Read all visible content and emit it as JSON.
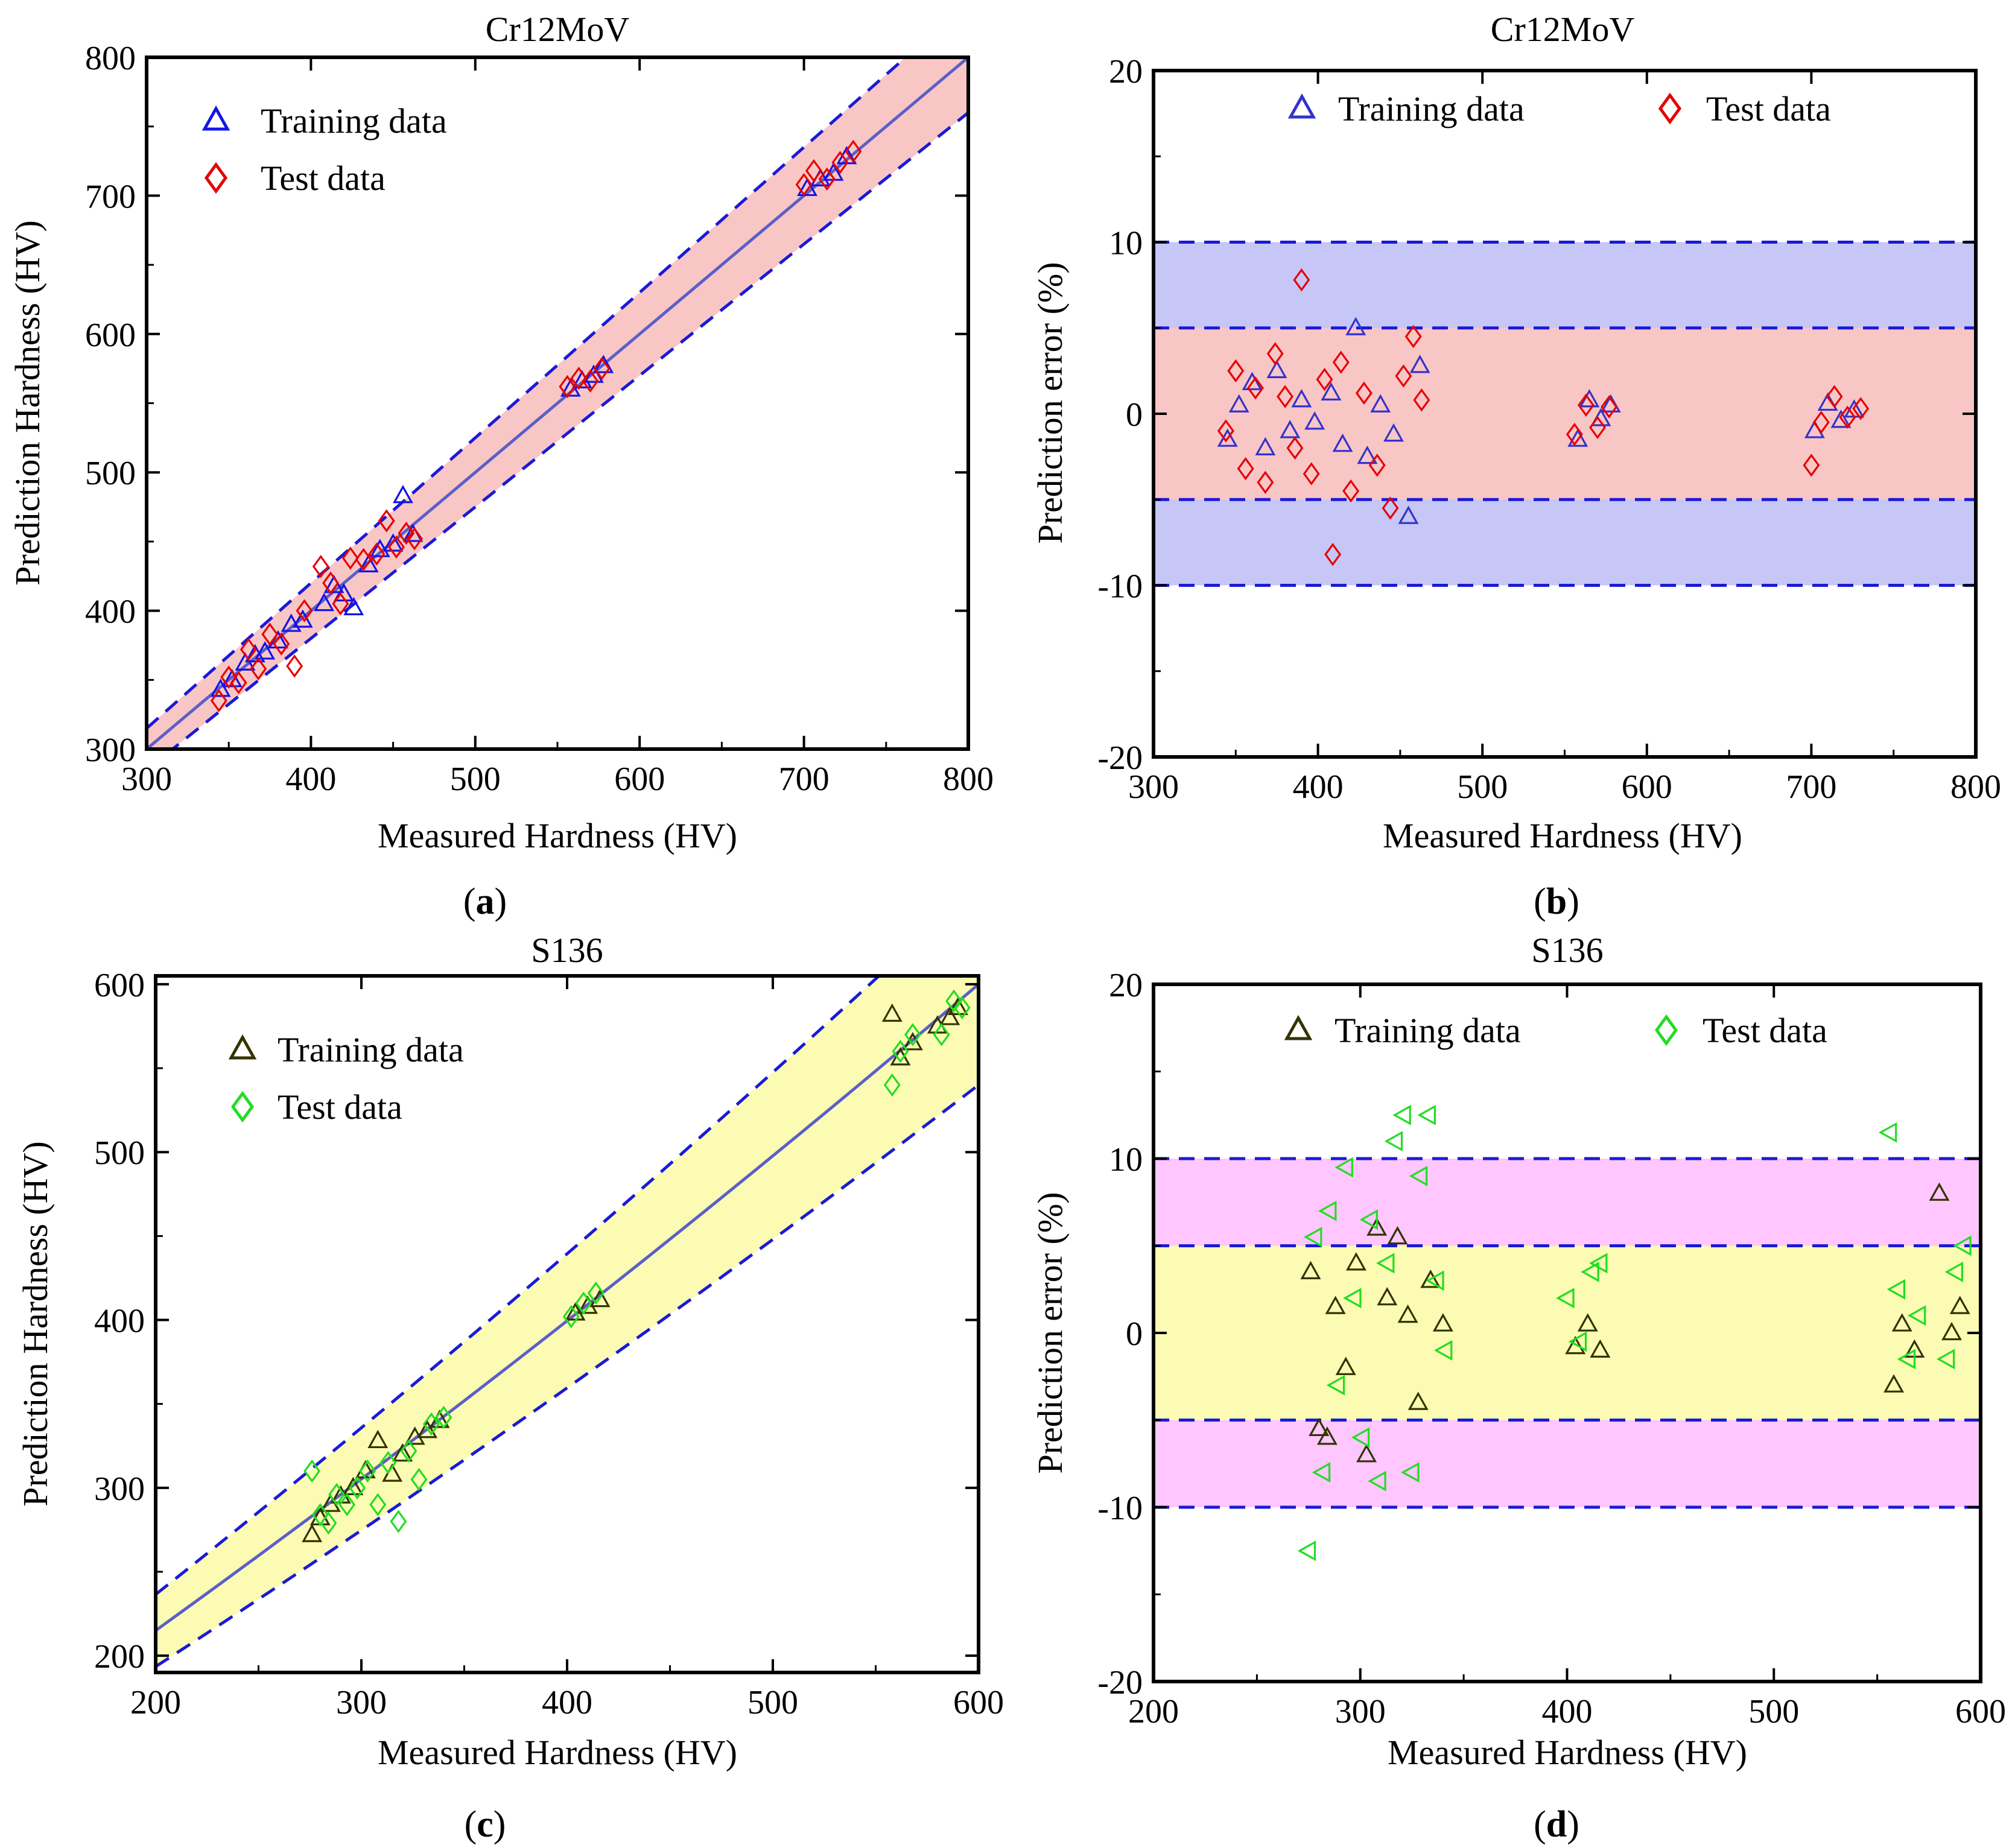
{
  "figure": {
    "panels": [
      {
        "id": "a",
        "caption_label": "a",
        "title": "Cr12MoV",
        "type": "parity",
        "xlabel": "Measured Hardness (HV)",
        "ylabel": "Prediction Hardness (HV)",
        "xlim": [
          300,
          800
        ],
        "ylim": [
          300,
          800
        ],
        "xticks": [
          300,
          400,
          500,
          600,
          700,
          800
        ],
        "yticks": [
          300,
          400,
          500,
          600,
          700,
          800
        ],
        "band_fraction": 0.05,
        "colors": {
          "band": "#f9c6c6",
          "fit_line": "#5b5fc7",
          "dashed": "#1a1ad6",
          "train": "#1414e6",
          "test": "#e60000"
        },
        "legend": {
          "train_label": "Training data",
          "test_label": "Test data",
          "position": "top-left"
        }
      },
      {
        "id": "b",
        "caption_label": "b",
        "title": "Cr12MoV",
        "type": "error",
        "xlabel": "Measured Hardness (HV)",
        "ylabel": "Prediction error (%)",
        "xlim": [
          300,
          800
        ],
        "ylim": [
          -20,
          20
        ],
        "xticks": [
          300,
          400,
          500,
          600,
          700,
          800
        ],
        "yticks": [
          -20,
          -10,
          0,
          10,
          20
        ],
        "inner_band": [
          -5,
          5
        ],
        "outer_band": [
          -10,
          10
        ],
        "colors": {
          "inner": "#f9c6c6",
          "outer": "#c6c6f7",
          "dashed": "#1a1ad6",
          "train": "#3333cc",
          "test": "#e60000"
        },
        "legend": {
          "train_label": "Training data",
          "test_label": "Test data",
          "position": "top"
        }
      },
      {
        "id": "c",
        "caption_label": "c",
        "title": "S136",
        "type": "parity",
        "xlabel": "Measured Hardness (HV)",
        "ylabel": "Prediction Hardness (HV)",
        "xlim": [
          200,
          600
        ],
        "ylim": [
          190,
          605
        ],
        "xticks": [
          200,
          300,
          400,
          500,
          600
        ],
        "yticks": [
          200,
          300,
          400,
          500,
          600
        ],
        "band_fraction": 0.1,
        "colors": {
          "band": "#fbfbb4",
          "fit_line": "#5b5fc7",
          "dashed": "#1a1ad6",
          "train": "#333300",
          "test": "#22dd22"
        },
        "legend": {
          "train_label": "Training data",
          "test_label": "Test data",
          "position": "top-left"
        }
      },
      {
        "id": "d",
        "caption_label": "d",
        "title": "S136",
        "type": "error",
        "xlabel": "Measured Hardness (HV)",
        "ylabel": "Prediction error (%)",
        "xlim": [
          200,
          600
        ],
        "ylim": [
          -20,
          20
        ],
        "xticks": [
          200,
          300,
          400,
          500,
          600
        ],
        "yticks": [
          -20,
          -10,
          0,
          10,
          20
        ],
        "inner_band": [
          -5,
          5
        ],
        "outer_band": [
          -10,
          10
        ],
        "colors": {
          "inner": "#fbfbb4",
          "outer": "#ffc6ff",
          "dashed": "#1a1ad6",
          "train": "#333300",
          "test": "#22dd22"
        },
        "legend": {
          "train_label": "Training data",
          "test_label": "Test data",
          "position": "top"
        }
      }
    ]
  },
  "chart_data": [
    {
      "type": "scatter",
      "title": "Cr12MoV",
      "panel": "a",
      "xlabel": "Measured Hardness (HV)",
      "ylabel": "Prediction Hardness (HV)",
      "xlim": [
        300,
        800
      ],
      "ylim": [
        300,
        800
      ],
      "reference_line": "y = x with ±5% dashed bounds",
      "series": [
        {
          "name": "Training data",
          "marker": "triangle",
          "x": [
            345,
            352,
            360,
            366,
            372,
            380,
            388,
            395,
            408,
            414,
            420,
            426,
            435,
            442,
            450,
            456,
            462,
            558,
            565,
            572,
            578,
            702,
            710,
            718,
            726
          ],
          "y": [
            343,
            350,
            362,
            368,
            370,
            378,
            390,
            393,
            405,
            418,
            412,
            402,
            433,
            444,
            448,
            483,
            455,
            560,
            566,
            570,
            577,
            705,
            712,
            716,
            728
          ]
        },
        {
          "name": "Test data",
          "marker": "diamond",
          "x": [
            344,
            350,
            356,
            362,
            368,
            375,
            382,
            390,
            396,
            406,
            412,
            418,
            424,
            432,
            440,
            446,
            452,
            458,
            463,
            556,
            563,
            570,
            577,
            700,
            706,
            714,
            722,
            730
          ],
          "y": [
            335,
            352,
            348,
            372,
            358,
            383,
            376,
            360,
            400,
            432,
            420,
            405,
            438,
            437,
            441,
            465,
            446,
            456,
            452,
            562,
            568,
            566,
            575,
            708,
            718,
            712,
            724,
            732
          ]
        }
      ]
    },
    {
      "type": "scatter",
      "title": "Cr12MoV",
      "panel": "b",
      "xlabel": "Measured Hardness (HV)",
      "ylabel": "Prediction error (%)",
      "xlim": [
        300,
        800
      ],
      "ylim": [
        -20,
        20
      ],
      "bands": {
        "inner": [
          -5,
          5
        ],
        "outer": [
          -10,
          10
        ]
      },
      "series": [
        {
          "name": "Training data",
          "marker": "triangle",
          "x": [
            345,
            352,
            360,
            368,
            375,
            383,
            390,
            398,
            408,
            415,
            423,
            430,
            438,
            446,
            455,
            462,
            558,
            565,
            572,
            578,
            702,
            710,
            718,
            726
          ],
          "y": [
            -1.5,
            0.5,
            1.8,
            -2.0,
            2.5,
            -1.0,
            0.8,
            -0.5,
            1.2,
            -1.8,
            5.0,
            -2.5,
            0.5,
            -1.2,
            -6.0,
            2.8,
            -1.5,
            0.8,
            -0.3,
            0.5,
            -1.0,
            0.6,
            -0.4,
            0.2
          ]
        },
        {
          "name": "Test data",
          "marker": "diamond",
          "x": [
            344,
            350,
            356,
            362,
            368,
            374,
            380,
            386,
            390,
            396,
            404,
            409,
            414,
            420,
            428,
            436,
            444,
            452,
            458,
            463,
            556,
            563,
            570,
            577,
            700,
            706,
            714,
            722,
            730
          ],
          "y": [
            -1.0,
            2.5,
            -3.2,
            1.5,
            -4.0,
            3.5,
            1.0,
            -2.0,
            7.8,
            -3.5,
            2.0,
            -8.2,
            3.0,
            -4.5,
            1.2,
            -3.0,
            -5.5,
            2.2,
            4.5,
            0.8,
            -1.2,
            0.5,
            -0.8,
            0.4,
            -3.0,
            -0.5,
            1.0,
            -0.2,
            0.3
          ]
        }
      ]
    },
    {
      "type": "scatter",
      "title": "S136",
      "panel": "c",
      "xlabel": "Measured Hardness (HV)",
      "ylabel": "Prediction Hardness (HV)",
      "xlim": [
        200,
        600
      ],
      "ylim": [
        190,
        605
      ],
      "reference_line": "fitted curve with ±10% dashed bounds",
      "series": [
        {
          "name": "Training data",
          "marker": "triangle",
          "x": [
            276,
            280,
            285,
            290,
            296,
            302,
            308,
            315,
            320,
            326,
            332,
            338,
            404,
            410,
            416,
            558,
            562,
            568,
            580,
            586,
            590
          ],
          "y": [
            272,
            282,
            290,
            295,
            300,
            310,
            328,
            308,
            320,
            330,
            334,
            340,
            404,
            408,
            412,
            582,
            556,
            565,
            575,
            580,
            586
          ]
        },
        {
          "name": "Test data",
          "marker": "diamond",
          "x": [
            276,
            280,
            284,
            288,
            293,
            298,
            303,
            308,
            313,
            318,
            323,
            328,
            334,
            340,
            402,
            408,
            414,
            558,
            562,
            568,
            582,
            588,
            592
          ],
          "y": [
            310,
            284,
            279,
            296,
            290,
            300,
            310,
            290,
            315,
            280,
            322,
            305,
            338,
            342,
            402,
            410,
            416,
            540,
            560,
            570,
            570,
            590,
            586
          ]
        }
      ]
    },
    {
      "type": "scatter",
      "title": "S136",
      "panel": "d",
      "xlabel": "Measured Hardness (HV)",
      "ylabel": "Prediction error (%)",
      "xlim": [
        200,
        600
      ],
      "ylim": [
        -20,
        20
      ],
      "bands": {
        "inner": [
          -5,
          5
        ],
        "outer": [
          -10,
          10
        ]
      },
      "series": [
        {
          "name": "Training data",
          "marker": "triangle",
          "x": [
            276,
            280,
            284,
            288,
            293,
            298,
            303,
            308,
            313,
            318,
            323,
            328,
            334,
            340,
            404,
            410,
            416,
            558,
            562,
            568,
            580,
            586,
            590
          ],
          "y": [
            3.5,
            -5.5,
            -6.0,
            1.5,
            -2.0,
            4.0,
            -7.0,
            6.0,
            2.0,
            5.5,
            1.0,
            -4.0,
            3.0,
            0.5,
            -0.8,
            0.5,
            -1.0,
            -3.0,
            0.5,
            -1.0,
            8.0,
            0.0,
            1.5
          ]
        },
        {
          "name": "Test data",
          "marker": "triangle-left",
          "x": [
            275,
            278,
            282,
            285,
            289,
            293,
            297,
            301,
            305,
            309,
            313,
            317,
            321,
            325,
            329,
            333,
            337,
            341,
            400,
            406,
            412,
            416,
            556,
            560,
            565,
            570,
            584,
            588,
            592
          ],
          "y": [
            -12.5,
            5.5,
            -8.0,
            7.0,
            -3.0,
            9.5,
            2.0,
            -6.0,
            6.5,
            -8.5,
            4.0,
            11.0,
            12.5,
            -8.0,
            9.0,
            12.5,
            3.0,
            -1.0,
            2.0,
            -0.5,
            3.5,
            4.0,
            11.5,
            2.5,
            -1.5,
            1.0,
            -1.5,
            3.5,
            5.0
          ]
        }
      ]
    }
  ]
}
